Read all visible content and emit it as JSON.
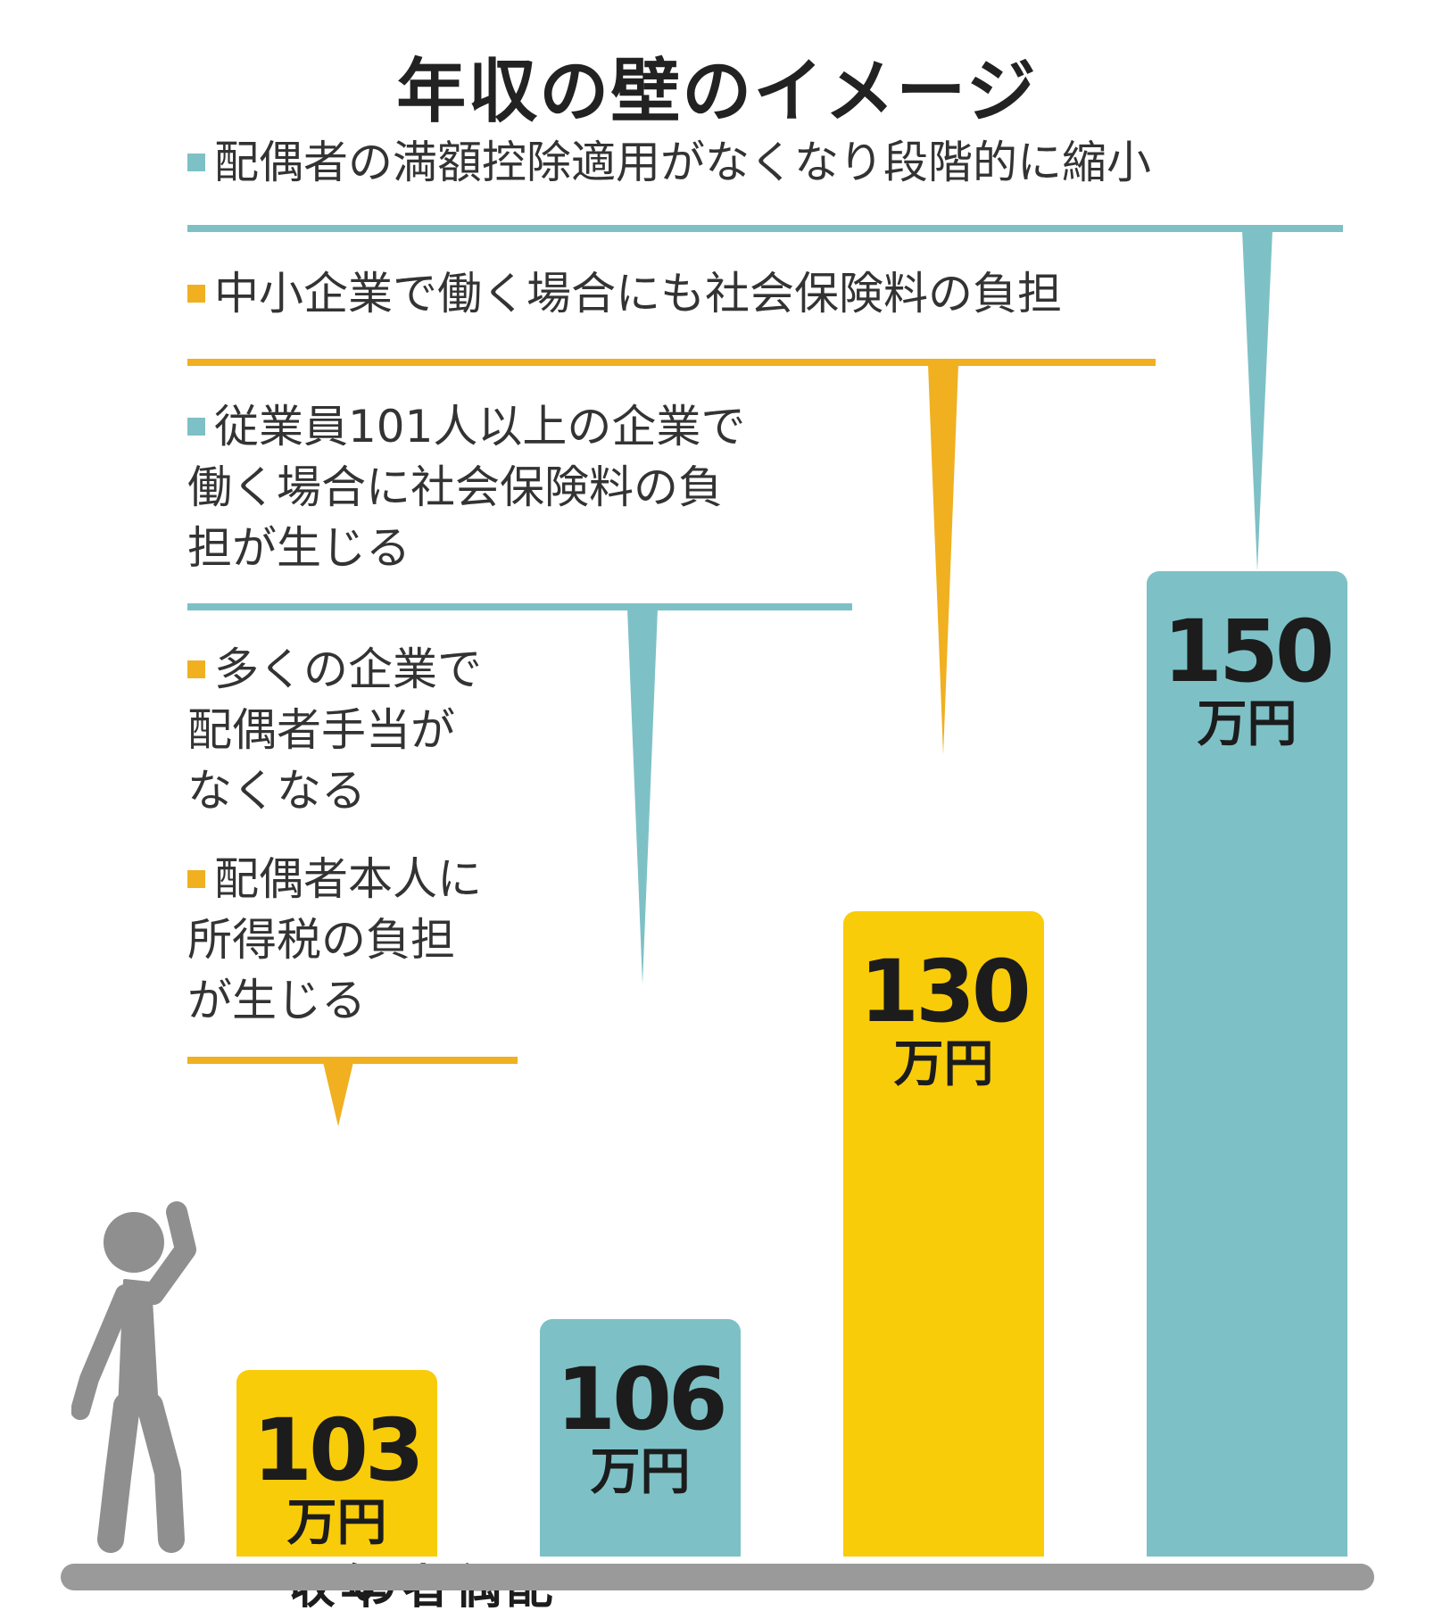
{
  "title": "年収の壁のイメージ",
  "colors": {
    "teal": "#7dc1c6",
    "yellow": "#f9cc0a",
    "orange_rule": "#f0b020",
    "ground": "#9a9a9a",
    "person": "#8f8f8f"
  },
  "notes": [
    {
      "lines": [
        "配偶者の満額控除適用がなくなり段階的に縮小"
      ],
      "color": "teal"
    },
    {
      "lines": [
        "中小企業で働く場合にも社会保険料の負担"
      ],
      "color": "orange"
    },
    {
      "lines": [
        "従業員101人以上の企業で",
        "働く場合に社会保険料の負",
        "担が生じる"
      ],
      "color": "teal"
    },
    {
      "lines": [
        "多くの企業で",
        "配偶者手当が",
        "なくなる"
      ],
      "color": "orange"
    },
    {
      "lines": [
        "配偶者本人に",
        "所得税の負担",
        "が生じる"
      ],
      "color": "orange"
    }
  ],
  "chart_data": {
    "type": "bar",
    "title": "年収の壁のイメージ",
    "categories": [
      "103万円",
      "106万円",
      "130万円",
      "150万円"
    ],
    "values": [
      103,
      106,
      130,
      150
    ],
    "unit": "万円",
    "bar_colors": [
      "yellow",
      "teal",
      "yellow",
      "teal"
    ],
    "first_bar_label": [
      "年収",
      "配偶者の"
    ],
    "ylim": [
      92,
      150
    ],
    "grid": false,
    "legend": "none"
  }
}
